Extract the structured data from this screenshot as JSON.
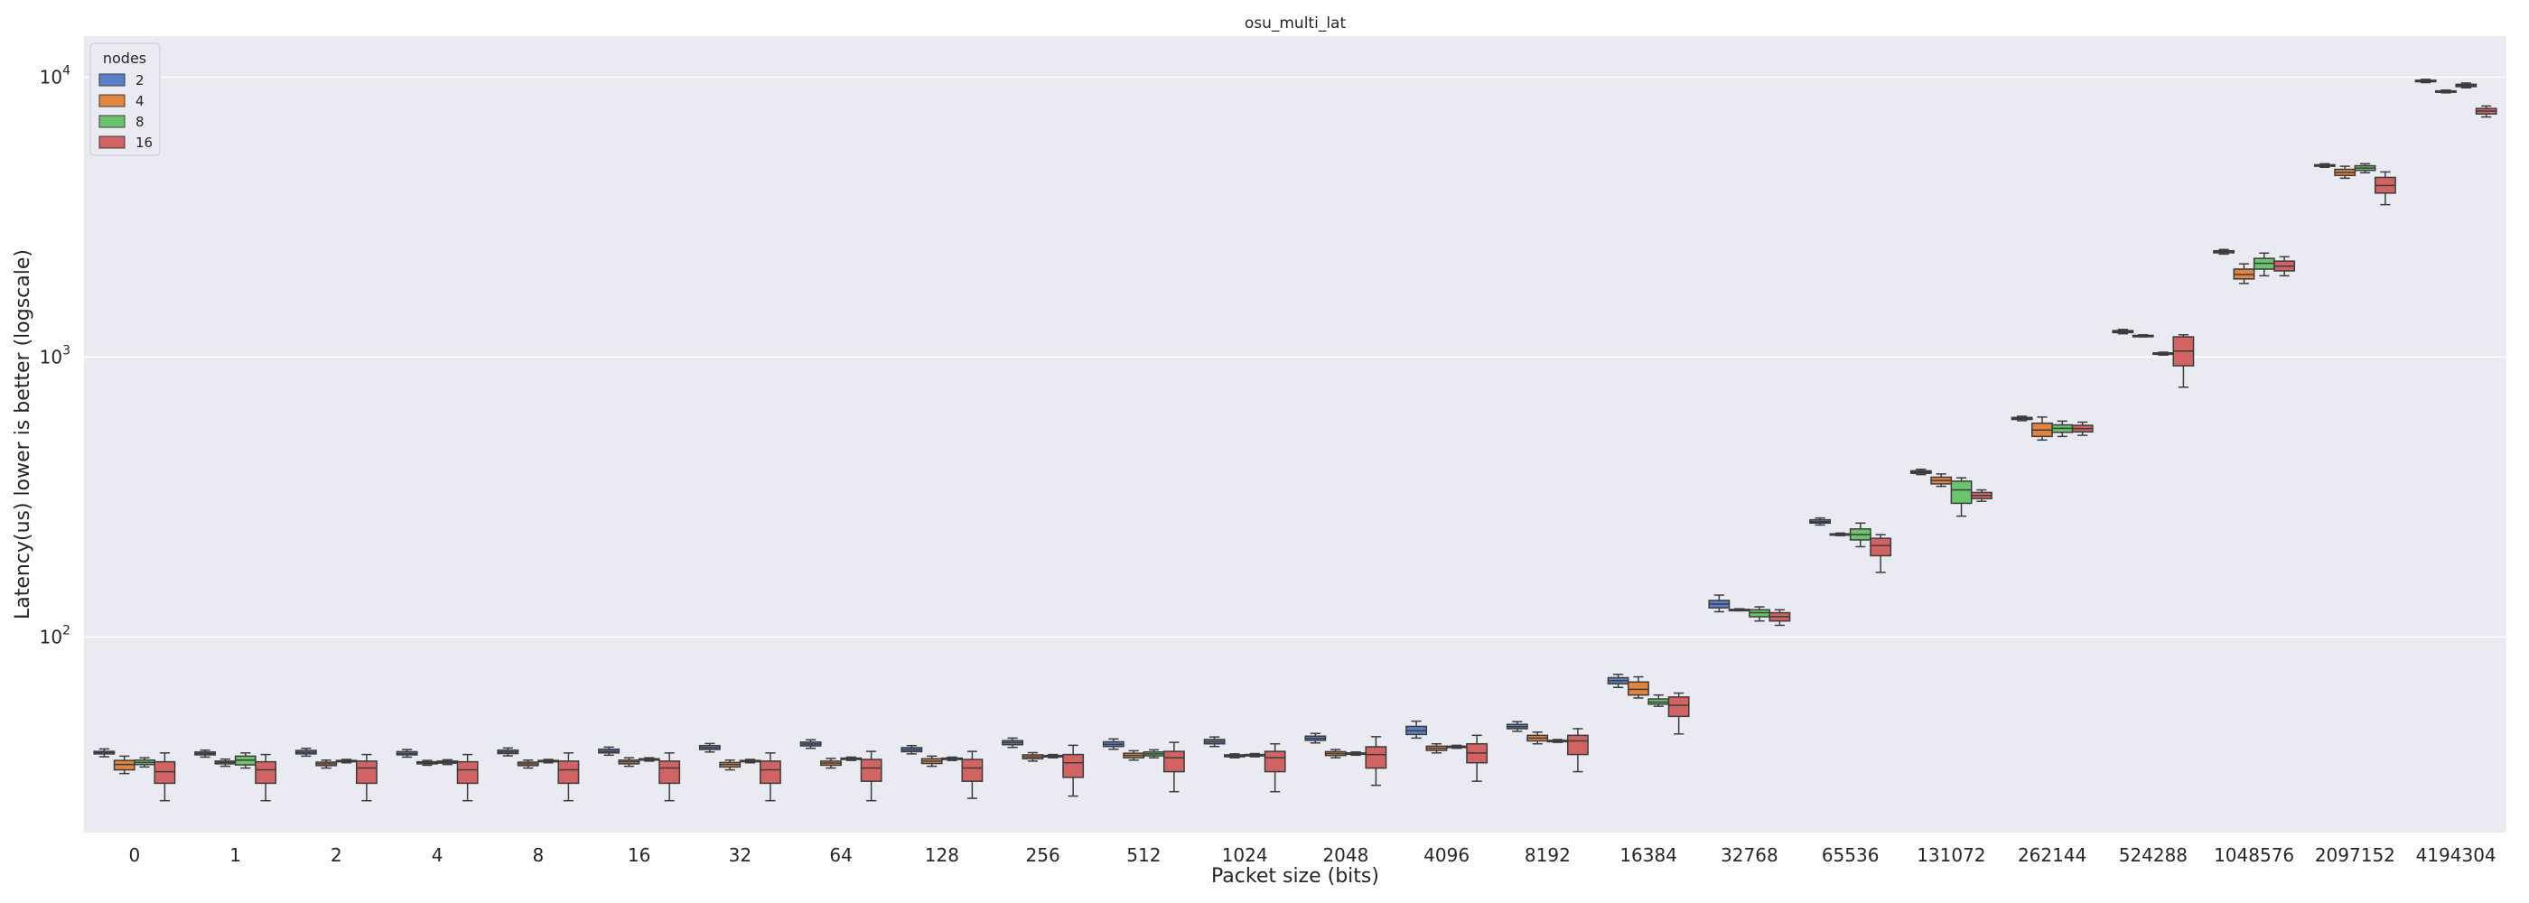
{
  "chart_data": {
    "type": "box",
    "title": "osu_multi_lat",
    "xlabel": "Packet size (bits)",
    "ylabel": "Latency(us) lower is better (logscale)",
    "yscale": "log",
    "ylim": [
      20,
      14000
    ],
    "yticks": [
      {
        "value": 100,
        "base": "10",
        "exp": "2"
      },
      {
        "value": 1000,
        "base": "10",
        "exp": "3"
      },
      {
        "value": 10000,
        "base": "10",
        "exp": "4"
      }
    ],
    "grid": true,
    "legend": {
      "title": "nodes",
      "position": "top-left"
    },
    "categories": [
      "0",
      "1",
      "2",
      "4",
      "8",
      "16",
      "32",
      "64",
      "128",
      "256",
      "512",
      "1024",
      "2048",
      "4096",
      "8192",
      "16384",
      "32768",
      "65536",
      "131072",
      "262144",
      "524288",
      "1048576",
      "2097152",
      "4194304"
    ],
    "series": [
      {
        "name": "2",
        "color": "#4c72b0",
        "fill": "#5a7fc8",
        "boxes": [
          [
            37.3,
            38.2,
            38.6,
            39.0,
            39.8
          ],
          [
            37.2,
            37.9,
            38.3,
            38.8,
            39.4
          ],
          [
            37.5,
            38.2,
            38.7,
            39.3,
            40.0
          ],
          [
            37.2,
            37.9,
            38.3,
            38.9,
            39.6
          ],
          [
            37.6,
            38.3,
            38.8,
            39.4,
            40.1
          ],
          [
            37.8,
            38.5,
            39.0,
            39.7,
            40.4
          ],
          [
            38.8,
            39.6,
            40.2,
            40.9,
            41.6
          ],
          [
            40.0,
            40.8,
            41.4,
            42.1,
            42.9
          ],
          [
            38.2,
            38.9,
            39.5,
            40.2,
            40.9
          ],
          [
            40.3,
            41.2,
            41.9,
            42.6,
            43.5
          ],
          [
            39.7,
            40.6,
            41.3,
            42.2,
            43.2
          ],
          [
            40.6,
            41.5,
            42.2,
            43.0,
            43.9
          ],
          [
            41.8,
            42.7,
            43.4,
            44.2,
            45.2
          ],
          [
            43.5,
            44.8,
            46.2,
            47.9,
            50.0
          ],
          [
            46.0,
            47.0,
            47.8,
            48.7,
            49.8
          ],
          [
            66.0,
            68.0,
            69.8,
            71.5,
            73.5
          ],
          [
            123.0,
            127.0,
            131.0,
            135.0,
            141.0
          ],
          [
            251.0,
            255.0,
            258.0,
            262.0,
            266.0
          ],
          [
            380.0,
            384.0,
            388.0,
            392.0,
            397.0
          ],
          [
            592.0,
            598.0,
            603.0,
            608.0,
            614.0
          ],
          [
            1210.0,
            1222.0,
            1232.0,
            1242.0,
            1254.0
          ],
          [
            2330.0,
            2355.0,
            2375.0,
            2395.0,
            2420.0
          ],
          [
            4760.0,
            4800.0,
            4830.0,
            4860.0,
            4900.0
          ],
          [
            9550.0,
            9620.0,
            9680.0,
            9740.0,
            9810.0
          ]
        ]
      },
      {
        "name": "4",
        "color": "#c86b2a",
        "fill": "#e1843f",
        "boxes": [
          [
            32.5,
            33.5,
            35.0,
            36.2,
            37.5
          ],
          [
            34.5,
            35.2,
            35.6,
            36.0,
            36.6
          ],
          [
            34.0,
            34.7,
            35.2,
            35.7,
            36.3
          ],
          [
            34.8,
            35.2,
            35.5,
            35.8,
            36.2
          ],
          [
            34.0,
            34.7,
            35.2,
            35.7,
            36.3
          ],
          [
            34.5,
            35.2,
            35.8,
            36.3,
            37.0
          ],
          [
            33.5,
            34.3,
            35.0,
            35.6,
            36.3
          ],
          [
            34.0,
            34.8,
            35.4,
            36.0,
            36.8
          ],
          [
            34.5,
            35.3,
            36.0,
            36.7,
            37.5
          ],
          [
            36.0,
            36.7,
            37.3,
            37.9,
            38.6
          ],
          [
            36.3,
            37.0,
            37.7,
            38.4,
            39.2
          ],
          [
            37.0,
            37.3,
            37.6,
            37.9,
            38.2
          ],
          [
            37.0,
            37.7,
            38.3,
            38.9,
            39.6
          ],
          [
            38.5,
            39.3,
            40.0,
            40.7,
            41.5
          ],
          [
            41.5,
            42.5,
            43.5,
            44.5,
            45.7
          ],
          [
            60.5,
            62.0,
            65.0,
            69.0,
            72.0
          ],
          [
            124.0,
            124.6,
            125.0,
            125.4,
            126.0
          ],
          [
            230.0,
            231.5,
            232.5,
            233.5,
            235.0
          ],
          [
            345.0,
            352.0,
            362.0,
            372.0,
            382.0
          ],
          [
            505.0,
            520.0,
            548.0,
            580.0,
            610.0
          ],
          [
            1180.0,
            1186.0,
            1190.0,
            1194.0,
            1200.0
          ],
          [
            1830.0,
            1900.0,
            1970.0,
            2060.0,
            2150.0
          ],
          [
            4350.0,
            4450.0,
            4560.0,
            4680.0,
            4800.0
          ],
          [
            8780.0,
            8840.0,
            8880.0,
            8920.0,
            8980.0
          ]
        ]
      },
      {
        "name": "8",
        "color": "#55a868",
        "fill": "#6bc46b",
        "boxes": [
          [
            34.3,
            35.0,
            35.6,
            36.3,
            37.0
          ],
          [
            34.0,
            34.9,
            36.3,
            37.5,
            38.5
          ],
          [
            35.5,
            35.8,
            36.0,
            36.2,
            36.5
          ],
          [
            35.0,
            35.4,
            35.7,
            36.0,
            36.4
          ],
          [
            35.5,
            35.8,
            36.0,
            36.2,
            36.5
          ],
          [
            36.0,
            36.3,
            36.5,
            36.7,
            37.0
          ],
          [
            35.5,
            35.8,
            36.0,
            36.2,
            36.5
          ],
          [
            36.2,
            36.5,
            36.7,
            36.9,
            37.2
          ],
          [
            36.2,
            36.5,
            36.7,
            36.9,
            37.2
          ],
          [
            37.0,
            37.3,
            37.5,
            37.7,
            38.0
          ],
          [
            37.0,
            37.6,
            38.2,
            38.8,
            39.5
          ],
          [
            37.3,
            37.6,
            37.8,
            38.0,
            38.3
          ],
          [
            37.8,
            38.1,
            38.3,
            38.5,
            38.8
          ],
          [
            40.0,
            40.3,
            40.5,
            40.7,
            41.0
          ],
          [
            42.0,
            42.3,
            42.5,
            42.7,
            43.0
          ],
          [
            56.5,
            57.5,
            58.5,
            60.0,
            62.0
          ],
          [
            114.0,
            118.0,
            122.0,
            125.0,
            128.0
          ],
          [
            210.0,
            222.0,
            232.0,
            243.0,
            255.0
          ],
          [
            270.0,
            300.0,
            335.0,
            360.0,
            370.0
          ],
          [
            520.0,
            538.0,
            556.0,
            572.0,
            590.0
          ],
          [
            1015.0,
            1022.0,
            1028.0,
            1034.0,
            1040.0
          ],
          [
            1950.0,
            2060.0,
            2160.0,
            2250.0,
            2350.0
          ],
          [
            4550.0,
            4640.0,
            4730.0,
            4820.0,
            4900.0
          ],
          [
            9150.0,
            9240.0,
            9330.0,
            9420.0,
            9520.0
          ]
        ]
      },
      {
        "name": "16",
        "color": "#b94b4e",
        "fill": "#d16363",
        "boxes": [
          [
            26.0,
            30.0,
            33.0,
            35.8,
            38.5
          ],
          [
            26.0,
            30.0,
            33.5,
            35.8,
            38.0
          ],
          [
            26.0,
            30.0,
            34.0,
            36.0,
            38.0
          ],
          [
            26.0,
            30.0,
            33.5,
            35.8,
            38.0
          ],
          [
            26.0,
            30.0,
            33.5,
            36.0,
            38.5
          ],
          [
            26.0,
            30.0,
            34.0,
            36.0,
            38.5
          ],
          [
            26.0,
            30.0,
            33.5,
            36.0,
            38.5
          ],
          [
            26.0,
            30.5,
            34.0,
            36.5,
            39.0
          ],
          [
            26.5,
            30.5,
            34.0,
            36.5,
            39.0
          ],
          [
            27.0,
            31.5,
            35.5,
            38.0,
            41.0
          ],
          [
            28.0,
            33.0,
            37.0,
            39.0,
            42.0
          ],
          [
            28.0,
            33.0,
            37.0,
            39.0,
            41.5
          ],
          [
            29.5,
            34.0,
            38.0,
            40.5,
            44.0
          ],
          [
            30.5,
            35.5,
            38.5,
            41.5,
            44.5
          ],
          [
            33.0,
            38.0,
            42.5,
            44.5,
            47.0
          ],
          [
            45.0,
            52.0,
            57.0,
            61.0,
            63.0
          ],
          [
            110.0,
            114.0,
            118.0,
            122.0,
            125.0
          ],
          [
            170.0,
            195.0,
            212.0,
            225.0,
            232.0
          ],
          [
            305.0,
            312.0,
            320.0,
            328.0,
            335.0
          ],
          [
            525.0,
            540.0,
            555.0,
            570.0,
            585.0
          ],
          [
            780.0,
            930.0,
            1050.0,
            1180.0,
            1200.0
          ],
          [
            1950.0,
            2030.0,
            2110.0,
            2200.0,
            2280.0
          ],
          [
            3500.0,
            3850.0,
            4100.0,
            4380.0,
            4580.0
          ],
          [
            7200.0,
            7380.0,
            7560.0,
            7720.0,
            7880.0
          ]
        ]
      }
    ]
  }
}
